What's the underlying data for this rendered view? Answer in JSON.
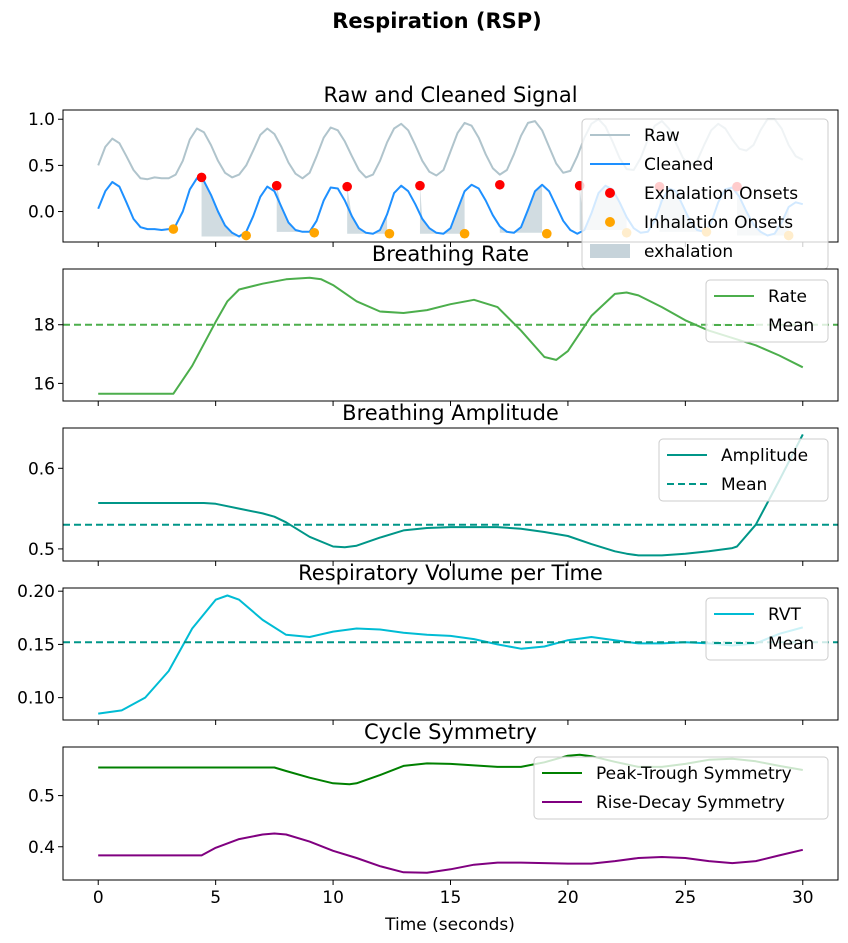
{
  "figure_title": "Respiration (RSP)",
  "xlabel": "Time (seconds)",
  "colors": {
    "raw": "#b0c4cc",
    "cleaned": "#1e90ff",
    "exhalation_onsets": "#ff0000",
    "inhalation_onsets": "#ffa500",
    "exhalation_fill": "#c6d3da",
    "rate": "#4cae4c",
    "amplitude": "#009688",
    "rvt": "#00bcd4",
    "rvt_mean": "#009688",
    "peak_trough": "#008000",
    "rise_decay": "#800080"
  },
  "chart_data": [
    {
      "type": "line",
      "title": "Raw and Cleaned Signal",
      "xlim": [
        -1.5,
        31.5
      ],
      "ylim": [
        -0.33,
        1.1
      ],
      "yticks": [
        "0.0",
        "0.5",
        "1.0"
      ],
      "xticks": [
        0,
        5,
        10,
        15,
        20,
        25,
        30
      ],
      "legend": [
        "Raw",
        "Cleaned",
        "Exhalation Onsets",
        "Inhalation Onsets",
        "exhalation"
      ],
      "legend_loc": "upper right",
      "series": [
        {
          "name": "Raw",
          "x": [
            0,
            0.3,
            0.6,
            0.9,
            1.2,
            1.5,
            1.8,
            2.1,
            2.4,
            2.7,
            3.0,
            3.3,
            3.6,
            3.9,
            4.2,
            4.5,
            4.8,
            5.1,
            5.4,
            5.7,
            6.0,
            6.3,
            6.6,
            6.9,
            7.2,
            7.5,
            7.8,
            8.1,
            8.4,
            8.7,
            9.0,
            9.3,
            9.6,
            9.9,
            10.2,
            10.5,
            10.8,
            11.1,
            11.4,
            11.7,
            12.0,
            12.3,
            12.6,
            12.9,
            13.2,
            13.5,
            13.8,
            14.1,
            14.4,
            14.7,
            15.0,
            15.3,
            15.6,
            15.9,
            16.2,
            16.5,
            16.8,
            17.1,
            17.4,
            17.7,
            18.0,
            18.3,
            18.6,
            18.9,
            19.2,
            19.5,
            19.8,
            20.1,
            20.4,
            20.7,
            21.0,
            21.3,
            21.6,
            21.9,
            22.2,
            22.5,
            22.8,
            23.1,
            23.4,
            23.7,
            24.0,
            24.3,
            24.6,
            24.9,
            25.2,
            25.5,
            25.8,
            26.1,
            26.4,
            26.7,
            27.0,
            27.3,
            27.6,
            27.9,
            28.2,
            28.5,
            28.8,
            29.1,
            29.4,
            29.7,
            30.0
          ],
          "y": [
            0.5,
            0.7,
            0.79,
            0.74,
            0.6,
            0.45,
            0.36,
            0.35,
            0.37,
            0.36,
            0.36,
            0.4,
            0.55,
            0.78,
            0.9,
            0.86,
            0.72,
            0.55,
            0.42,
            0.37,
            0.4,
            0.5,
            0.66,
            0.83,
            0.9,
            0.84,
            0.7,
            0.53,
            0.41,
            0.36,
            0.42,
            0.6,
            0.8,
            0.91,
            0.88,
            0.76,
            0.6,
            0.45,
            0.37,
            0.4,
            0.55,
            0.75,
            0.9,
            0.95,
            0.88,
            0.72,
            0.55,
            0.43,
            0.39,
            0.45,
            0.65,
            0.85,
            0.96,
            0.93,
            0.8,
            0.62,
            0.47,
            0.4,
            0.45,
            0.62,
            0.82,
            0.96,
            0.98,
            0.88,
            0.7,
            0.52,
            0.42,
            0.44,
            0.6,
            0.8,
            0.95,
            1.0,
            0.92,
            0.76,
            0.58,
            0.46,
            0.45,
            0.58,
            0.78,
            0.93,
            0.98,
            0.9,
            0.74,
            0.58,
            0.5,
            0.55,
            0.72,
            0.88,
            0.95,
            0.9,
            0.78,
            0.68,
            0.66,
            0.72,
            0.88,
            1.0,
            1.0,
            0.9,
            0.72,
            0.6,
            0.56
          ]
        },
        {
          "name": "Cleaned",
          "x": [
            0,
            0.3,
            0.6,
            0.9,
            1.2,
            1.5,
            1.8,
            2.1,
            2.4,
            2.7,
            3.0,
            3.3,
            3.6,
            3.9,
            4.2,
            4.5,
            4.8,
            5.1,
            5.4,
            5.7,
            6.0,
            6.3,
            6.6,
            6.9,
            7.2,
            7.5,
            7.8,
            8.1,
            8.4,
            8.7,
            9.0,
            9.3,
            9.6,
            9.9,
            10.2,
            10.5,
            10.8,
            11.1,
            11.4,
            11.7,
            12.0,
            12.3,
            12.6,
            12.9,
            13.2,
            13.5,
            13.8,
            14.1,
            14.4,
            14.7,
            15.0,
            15.3,
            15.6,
            15.9,
            16.2,
            16.5,
            16.8,
            17.1,
            17.4,
            17.7,
            18.0,
            18.3,
            18.6,
            18.9,
            19.2,
            19.5,
            19.8,
            20.1,
            20.4,
            20.7,
            21.0,
            21.3,
            21.6,
            21.9,
            22.2,
            22.5,
            22.8,
            23.1,
            23.4,
            23.7,
            24.0,
            24.3,
            24.6,
            24.9,
            25.2,
            25.5,
            25.8,
            26.1,
            26.4,
            26.7,
            27.0,
            27.3,
            27.6,
            27.9,
            28.2,
            28.5,
            28.8,
            29.1,
            29.4,
            29.7,
            30.0
          ],
          "y": [
            0.03,
            0.22,
            0.32,
            0.27,
            0.1,
            -0.08,
            -0.17,
            -0.19,
            -0.19,
            -0.2,
            -0.19,
            -0.15,
            0.0,
            0.24,
            0.36,
            0.33,
            0.18,
            0.0,
            -0.15,
            -0.23,
            -0.27,
            -0.22,
            -0.05,
            0.16,
            0.27,
            0.22,
            0.05,
            -0.12,
            -0.2,
            -0.22,
            -0.22,
            -0.1,
            0.12,
            0.26,
            0.25,
            0.12,
            -0.05,
            -0.18,
            -0.23,
            -0.24,
            -0.2,
            -0.03,
            0.2,
            0.28,
            0.22,
            0.08,
            -0.08,
            -0.18,
            -0.23,
            -0.24,
            -0.18,
            0.02,
            0.22,
            0.29,
            0.25,
            0.12,
            -0.04,
            -0.16,
            -0.22,
            -0.23,
            -0.17,
            0.02,
            0.22,
            0.29,
            0.22,
            0.06,
            -0.1,
            -0.2,
            -0.24,
            -0.2,
            -0.02,
            0.2,
            0.28,
            0.24,
            0.1,
            -0.06,
            -0.18,
            -0.23,
            -0.22,
            -0.1,
            0.12,
            0.25,
            0.22,
            0.06,
            -0.1,
            -0.2,
            -0.22,
            -0.12,
            0.1,
            0.24,
            0.26,
            0.16,
            0.0,
            -0.14,
            -0.22,
            -0.26,
            -0.24,
            -0.12,
            0.05,
            0.1,
            0.08
          ]
        },
        {
          "name": "Exhalation Onsets",
          "x": [
            4.4,
            7.6,
            10.6,
            13.7,
            17.1,
            20.5,
            23.9,
            27.2
          ],
          "y": [
            0.37,
            0.28,
            0.27,
            0.28,
            0.29,
            0.28,
            0.27,
            0.27
          ]
        },
        {
          "name": "Inhalation Onsets",
          "x": [
            3.2,
            6.3,
            9.2,
            12.4,
            15.6,
            19.1,
            22.5,
            25.9,
            29.4
          ],
          "y": [
            -0.19,
            -0.26,
            -0.23,
            -0.24,
            -0.24,
            -0.24,
            -0.23,
            -0.22,
            -0.26
          ]
        }
      ]
    },
    {
      "type": "line",
      "title": "Breathing Rate",
      "xlim": [
        -1.5,
        31.5
      ],
      "ylim": [
        15.4,
        19.9
      ],
      "yticks": [
        "16",
        "18"
      ],
      "mean": 18.0,
      "legend": [
        "Rate",
        "Mean"
      ],
      "series": [
        {
          "name": "Rate",
          "x": [
            0,
            1,
            2,
            3,
            3.2,
            4,
            5,
            5.5,
            6,
            7,
            8,
            9,
            9.5,
            10,
            11,
            12,
            13,
            14,
            15,
            16,
            17,
            18,
            19,
            19.5,
            20,
            21,
            22,
            22.5,
            23,
            24,
            25,
            26,
            27,
            28,
            29,
            30
          ],
          "y": [
            15.65,
            15.65,
            15.65,
            15.65,
            15.65,
            16.6,
            18.1,
            18.8,
            19.2,
            19.4,
            19.55,
            19.6,
            19.55,
            19.35,
            18.8,
            18.45,
            18.4,
            18.5,
            18.7,
            18.85,
            18.6,
            17.8,
            16.9,
            16.8,
            17.1,
            18.3,
            19.05,
            19.1,
            19.0,
            18.6,
            18.15,
            17.8,
            17.55,
            17.3,
            16.95,
            16.55
          ]
        },
        {
          "name": "Mean",
          "x": [
            -1.5,
            31.5
          ],
          "y": [
            18.0,
            18.0
          ]
        }
      ]
    },
    {
      "type": "line",
      "title": "Breathing Amplitude",
      "xlim": [
        -1.5,
        31.5
      ],
      "ylim": [
        0.485,
        0.65
      ],
      "yticks": [
        "0.5",
        "0.6"
      ],
      "mean": 0.53,
      "legend": [
        "Amplitude",
        "Mean"
      ],
      "series": [
        {
          "name": "Amplitude",
          "x": [
            0,
            1,
            2,
            3,
            4,
            4.5,
            5,
            6,
            7,
            7.5,
            8,
            9,
            10,
            10.5,
            11,
            12,
            13,
            14,
            15,
            16,
            17,
            18,
            19,
            20,
            21,
            22,
            22.5,
            23,
            24,
            25,
            26,
            27,
            27.2,
            28,
            29,
            30
          ],
          "y": [
            0.557,
            0.557,
            0.557,
            0.557,
            0.557,
            0.557,
            0.556,
            0.55,
            0.544,
            0.54,
            0.533,
            0.515,
            0.503,
            0.502,
            0.504,
            0.514,
            0.523,
            0.526,
            0.527,
            0.527,
            0.527,
            0.525,
            0.521,
            0.516,
            0.506,
            0.497,
            0.494,
            0.492,
            0.492,
            0.494,
            0.497,
            0.501,
            0.503,
            0.53,
            0.585,
            0.642
          ]
        },
        {
          "name": "Mean",
          "x": [
            -1.5,
            31.5
          ],
          "y": [
            0.53,
            0.53
          ]
        }
      ]
    },
    {
      "type": "line",
      "title": "Respiratory Volume per Time",
      "xlim": [
        -1.5,
        31.5
      ],
      "ylim": [
        0.079,
        0.203
      ],
      "yticks": [
        "0.10",
        "0.15",
        "0.20"
      ],
      "mean": 0.152,
      "legend": [
        "RVT",
        "Mean"
      ],
      "series": [
        {
          "name": "RVT",
          "x": [
            0,
            1,
            2,
            3,
            4,
            5,
            5.5,
            6,
            7,
            8,
            9,
            10,
            11,
            12,
            13,
            14,
            15,
            16,
            17,
            18,
            19,
            20,
            21,
            22,
            23,
            24,
            25,
            26,
            27,
            28,
            29,
            30
          ],
          "y": [
            0.085,
            0.088,
            0.1,
            0.125,
            0.165,
            0.192,
            0.196,
            0.192,
            0.173,
            0.159,
            0.157,
            0.162,
            0.165,
            0.164,
            0.161,
            0.159,
            0.158,
            0.155,
            0.15,
            0.146,
            0.148,
            0.154,
            0.157,
            0.154,
            0.151,
            0.151,
            0.152,
            0.151,
            0.149,
            0.151,
            0.16,
            0.166
          ]
        },
        {
          "name": "Mean",
          "x": [
            -1.5,
            31.5
          ],
          "y": [
            0.152,
            0.152
          ]
        }
      ]
    },
    {
      "type": "line",
      "title": "Cycle Symmetry",
      "xlim": [
        -1.5,
        31.5
      ],
      "ylim": [
        0.335,
        0.595
      ],
      "yticks": [
        "0.4",
        "0.5"
      ],
      "xticks": [
        0,
        5,
        10,
        15,
        20,
        25,
        30
      ],
      "legend": [
        "Peak-Trough Symmetry",
        "Rise-Decay Symmetry"
      ],
      "series": [
        {
          "name": "Peak-Trough Symmetry",
          "x": [
            0,
            2,
            4,
            6,
            7.5,
            8,
            9,
            10,
            10.7,
            11,
            12,
            13,
            14,
            15,
            16,
            17,
            18,
            19,
            20,
            20.5,
            21,
            22,
            23,
            24,
            25,
            26,
            27,
            28,
            29,
            30
          ],
          "y": [
            0.555,
            0.555,
            0.555,
            0.555,
            0.555,
            0.548,
            0.535,
            0.524,
            0.522,
            0.524,
            0.54,
            0.558,
            0.563,
            0.562,
            0.559,
            0.556,
            0.556,
            0.565,
            0.578,
            0.58,
            0.577,
            0.566,
            0.556,
            0.556,
            0.562,
            0.57,
            0.572,
            0.567,
            0.558,
            0.55
          ]
        },
        {
          "name": "Rise-Decay Symmetry",
          "x": [
            0,
            2,
            4,
            4.4,
            5,
            6,
            7,
            7.5,
            8,
            9,
            10,
            11,
            12,
            13,
            14,
            15,
            16,
            17,
            18,
            19,
            20,
            21,
            22,
            23,
            24,
            25,
            26,
            27,
            28,
            29,
            30
          ],
          "y": [
            0.383,
            0.383,
            0.383,
            0.383,
            0.398,
            0.415,
            0.424,
            0.426,
            0.424,
            0.41,
            0.392,
            0.378,
            0.362,
            0.35,
            0.349,
            0.356,
            0.365,
            0.369,
            0.369,
            0.368,
            0.367,
            0.367,
            0.372,
            0.378,
            0.38,
            0.378,
            0.372,
            0.368,
            0.372,
            0.383,
            0.394
          ]
        }
      ]
    }
  ]
}
